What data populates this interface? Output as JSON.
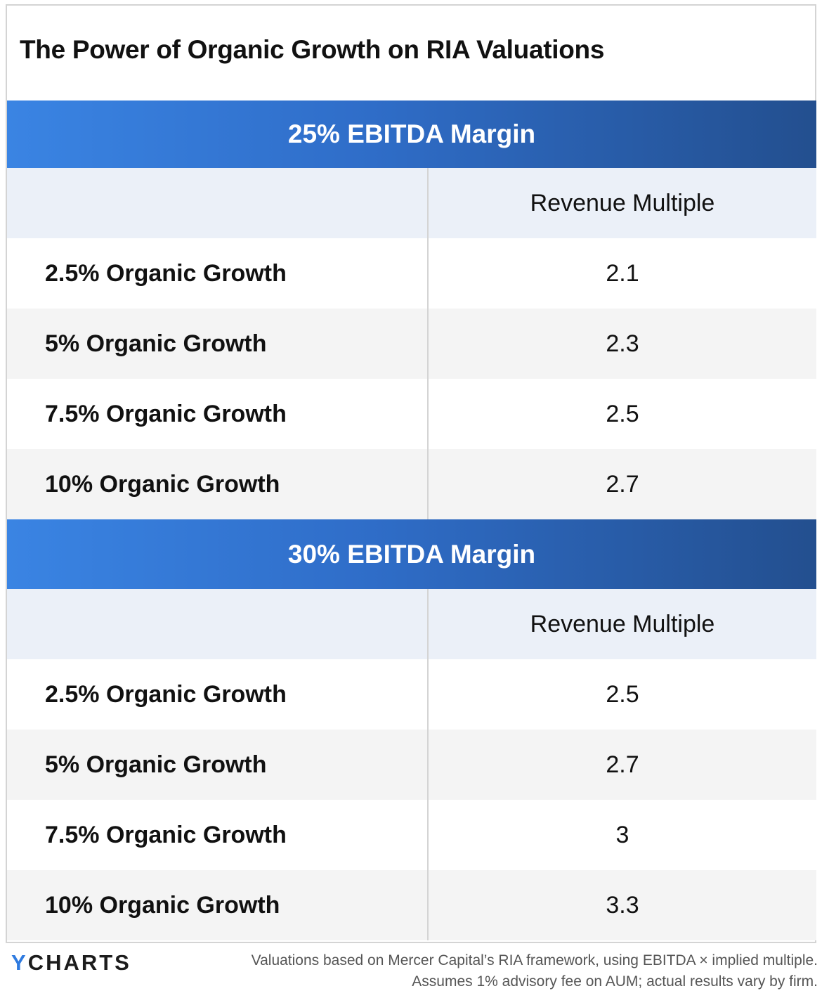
{
  "title": "The Power of Organic Growth on RIA Valuations",
  "chart_data": {
    "type": "table",
    "title": "The Power of Organic Growth on RIA Valuations",
    "sections": [
      {
        "header": "25% EBITDA Margin",
        "column_header": "Revenue Multiple",
        "rows": [
          {
            "label": "2.5% Organic Growth",
            "value": "2.1"
          },
          {
            "label": "5% Organic Growth",
            "value": "2.3"
          },
          {
            "label": "7.5% Organic Growth",
            "value": "2.5"
          },
          {
            "label": "10% Organic Growth",
            "value": "2.7"
          }
        ]
      },
      {
        "header": "30% EBITDA Margin",
        "column_header": "Revenue Multiple",
        "rows": [
          {
            "label": "2.5% Organic Growth",
            "value": "2.5"
          },
          {
            "label": "5% Organic Growth",
            "value": "2.7"
          },
          {
            "label": "7.5% Organic Growth",
            "value": "3"
          },
          {
            "label": "10% Organic Growth",
            "value": "3.3"
          }
        ]
      }
    ]
  },
  "footer": {
    "logo_accent": "Y",
    "logo_rest": "CHARTS",
    "note_line1": "Valuations based on Mercer Capital’s RIA framework, using EBITDA × implied multiple.",
    "note_line2": "Assumes 1% advisory fee on AUM; actual results vary by firm."
  },
  "colors": {
    "header_gradient_start": "#3a84e3",
    "header_gradient_end": "#234f8f",
    "column_header_bg": "#ebf0f8",
    "row_alt_bg": "#f4f4f4",
    "logo_accent": "#2f7be0"
  }
}
